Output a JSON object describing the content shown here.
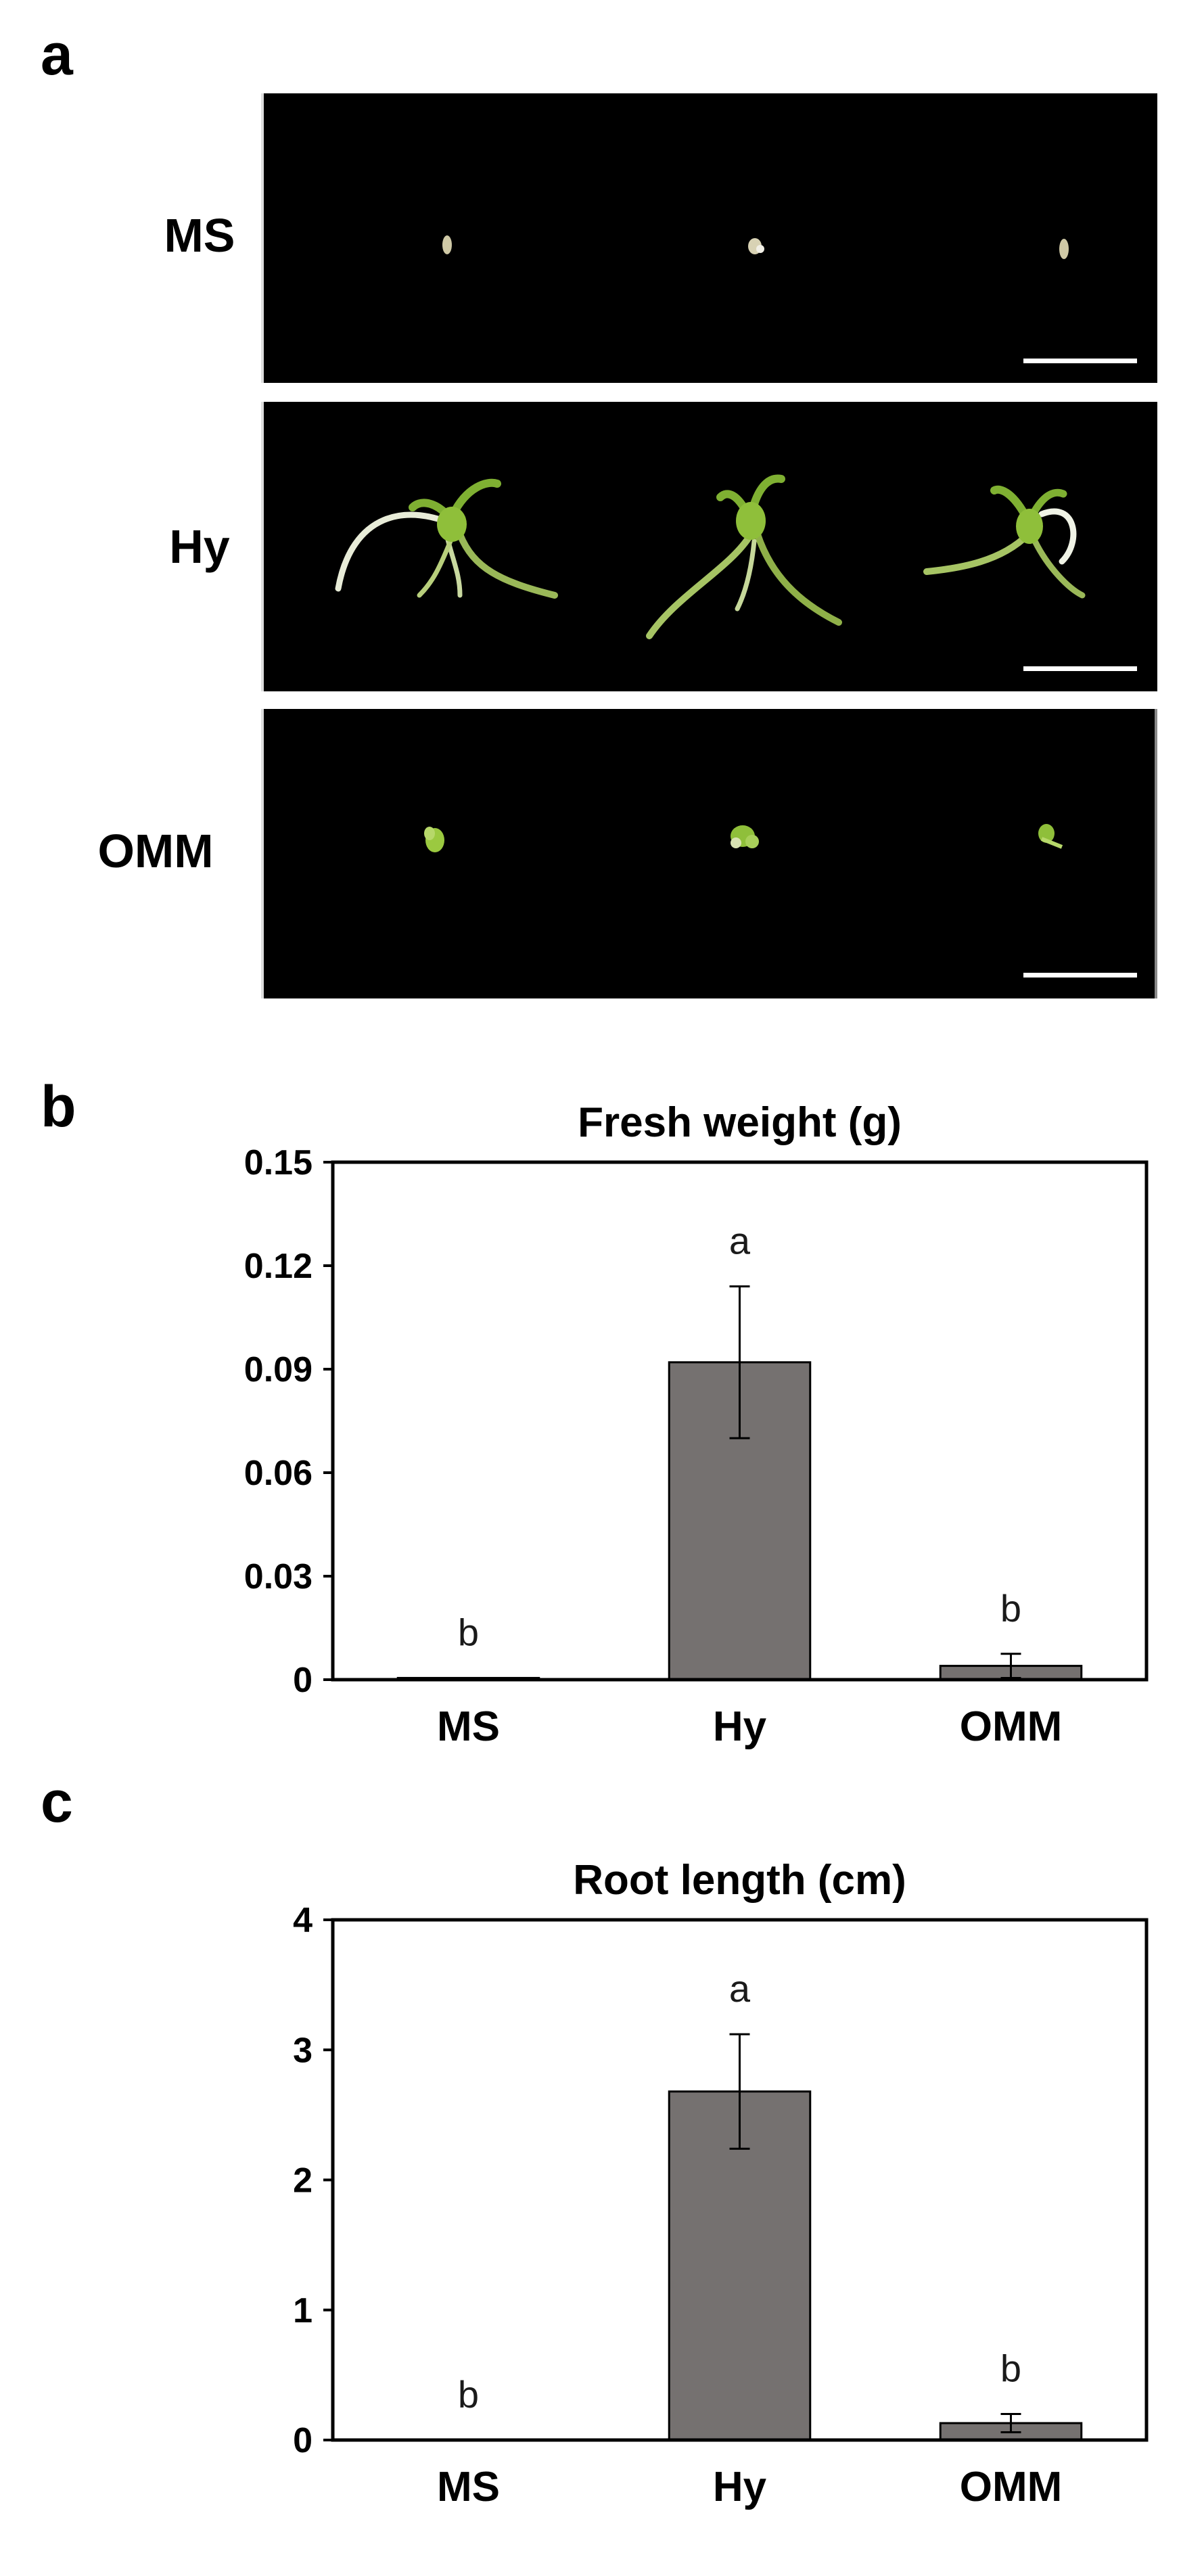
{
  "panels": {
    "a": {
      "letter": "a",
      "rows": [
        {
          "label": "MS"
        },
        {
          "label": "Hy"
        },
        {
          "label": "OMM"
        }
      ]
    },
    "b": {
      "letter": "b"
    },
    "c": {
      "letter": "c"
    }
  },
  "colors": {
    "bar_fill": "#757170",
    "photo_background": "#000000",
    "scale_bar": "#ffffff",
    "seedling_green": "#8fbf3a",
    "root_white": "#e8ecd8"
  },
  "chart_data": [
    {
      "type": "bar",
      "title": "Fresh weight (g)",
      "categories": [
        "MS",
        "Hy",
        "OMM"
      ],
      "values": [
        0.0005,
        0.092,
        0.004
      ],
      "errors": [
        0,
        0.022,
        0.0035
      ],
      "significance": [
        "b",
        "a",
        "b"
      ],
      "ylim": [
        0,
        0.15
      ],
      "yticks": [
        "0",
        "0.03",
        "0.06",
        "0.09",
        "0.12",
        "0.15"
      ],
      "xlabel": "",
      "ylabel": "",
      "grid": false,
      "legend": "none"
    },
    {
      "type": "bar",
      "title": "Root length (cm)",
      "categories": [
        "MS",
        "Hy",
        "OMM"
      ],
      "values": [
        0,
        2.68,
        0.13
      ],
      "errors": [
        0,
        0.44,
        0.07
      ],
      "significance": [
        "b",
        "a",
        "b"
      ],
      "ylim": [
        0,
        4
      ],
      "yticks": [
        "0",
        "1",
        "2",
        "3",
        "4"
      ],
      "xlabel": "",
      "ylabel": "",
      "grid": false,
      "legend": "none"
    }
  ]
}
